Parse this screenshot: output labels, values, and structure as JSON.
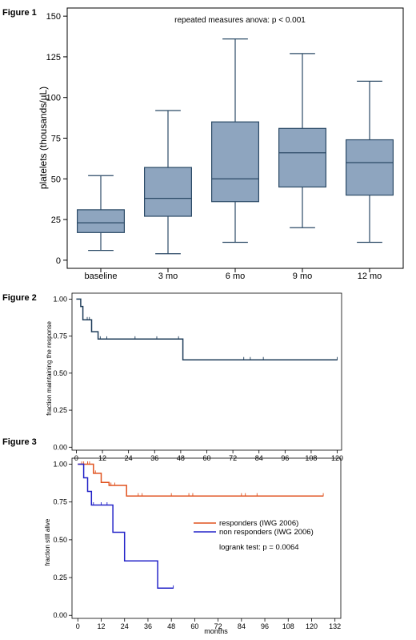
{
  "figures": [
    {
      "label": "Figure 1"
    },
    {
      "label": "Figure 2"
    },
    {
      "label": "Figure 3"
    }
  ],
  "colors": {
    "box_fill": "#8ea5bf",
    "box_stroke": "#2b4a66",
    "km_line": "#1f3d5a",
    "responders": "#e0521e",
    "non_responders": "#2323c8"
  },
  "chart_data": [
    {
      "type": "box",
      "ylabel": "platelets (thousands/µL)",
      "annotation": "repeated measures anova: p < 0.001",
      "ylim": [
        -5,
        155
      ],
      "yticks": [
        0,
        25,
        50,
        75,
        100,
        125,
        150
      ],
      "categories": [
        "baseline",
        "3 mo",
        "6 mo",
        "9 mo",
        "12 mo"
      ],
      "boxes": [
        {
          "min": 6,
          "q1": 17,
          "median": 23,
          "q3": 31,
          "max": 52
        },
        {
          "min": 4,
          "q1": 27,
          "median": 38,
          "q3": 57,
          "max": 92
        },
        {
          "min": 11,
          "q1": 36,
          "median": 50,
          "q3": 85,
          "max": 136
        },
        {
          "min": 20,
          "q1": 45,
          "median": 66,
          "q3": 81,
          "max": 127
        },
        {
          "min": 11,
          "q1": 40,
          "median": 60,
          "q3": 74,
          "max": 110
        }
      ],
      "grid": false
    },
    {
      "type": "line",
      "ylabel": "fraction maintaining the response",
      "xlim": [
        -2,
        122
      ],
      "ylim": [
        -0.02,
        1.04
      ],
      "xticks": [
        0,
        12,
        24,
        36,
        48,
        60,
        72,
        84,
        96,
        108,
        120
      ],
      "yticks": [
        0.0,
        0.25,
        0.5,
        0.75,
        1.0
      ],
      "ytick_labels": [
        "0.00",
        "0.25",
        "0.50",
        "0.75",
        "1.00"
      ],
      "series": [
        {
          "x": [
            0,
            2,
            2,
            3,
            3,
            7,
            7,
            10,
            10,
            49,
            49,
            120
          ],
          "y": [
            1.0,
            1.0,
            0.95,
            0.95,
            0.86,
            0.86,
            0.78,
            0.78,
            0.73,
            0.73,
            0.59,
            0.59
          ],
          "censor_x": [
            5,
            6,
            11,
            14,
            27,
            37,
            47,
            77,
            80,
            86,
            120
          ],
          "censor_y": [
            0.86,
            0.86,
            0.73,
            0.73,
            0.73,
            0.73,
            0.73,
            0.59,
            0.59,
            0.59,
            0.59
          ]
        }
      ],
      "grid": false
    },
    {
      "type": "line",
      "ylabel": "fraction still alive",
      "xlabel": "months",
      "xlim": [
        -3,
        135
      ],
      "ylim": [
        -0.02,
        1.04
      ],
      "xticks": [
        0,
        12,
        24,
        36,
        48,
        60,
        72,
        84,
        96,
        108,
        120,
        132
      ],
      "yticks": [
        0.0,
        0.25,
        0.5,
        0.75,
        1.0
      ],
      "ytick_labels": [
        "0.00",
        "0.25",
        "0.50",
        "0.75",
        "1.00"
      ],
      "series": [
        {
          "name": "responders (IWG 2006)",
          "x": [
            0,
            8,
            8,
            12,
            12,
            16,
            16,
            25,
            25,
            126
          ],
          "y": [
            1.0,
            1.0,
            0.94,
            0.94,
            0.88,
            0.88,
            0.86,
            0.86,
            0.79,
            0.79
          ],
          "censor_x": [
            2,
            3,
            5,
            6,
            9,
            17,
            19,
            31,
            33,
            48,
            57,
            59,
            84,
            86,
            92,
            126
          ],
          "censor_y": [
            1.0,
            1.0,
            1.0,
            1.0,
            0.94,
            0.86,
            0.86,
            0.79,
            0.79,
            0.79,
            0.79,
            0.79,
            0.79,
            0.79,
            0.79,
            0.79
          ]
        },
        {
          "name": "non responders (IWG 2006)",
          "x": [
            0,
            3,
            3,
            5,
            5,
            7,
            7,
            18,
            18,
            24,
            24,
            41,
            41,
            49
          ],
          "y": [
            1.0,
            1.0,
            0.91,
            0.91,
            0.82,
            0.82,
            0.73,
            0.73,
            0.55,
            0.55,
            0.36,
            0.36,
            0.18,
            0.18
          ],
          "censor_x": [
            8,
            12,
            15,
            49
          ],
          "censor_y": [
            0.73,
            0.73,
            0.73,
            0.18
          ]
        }
      ],
      "annotation": "logrank test: p = 0.0064",
      "grid": false
    }
  ]
}
